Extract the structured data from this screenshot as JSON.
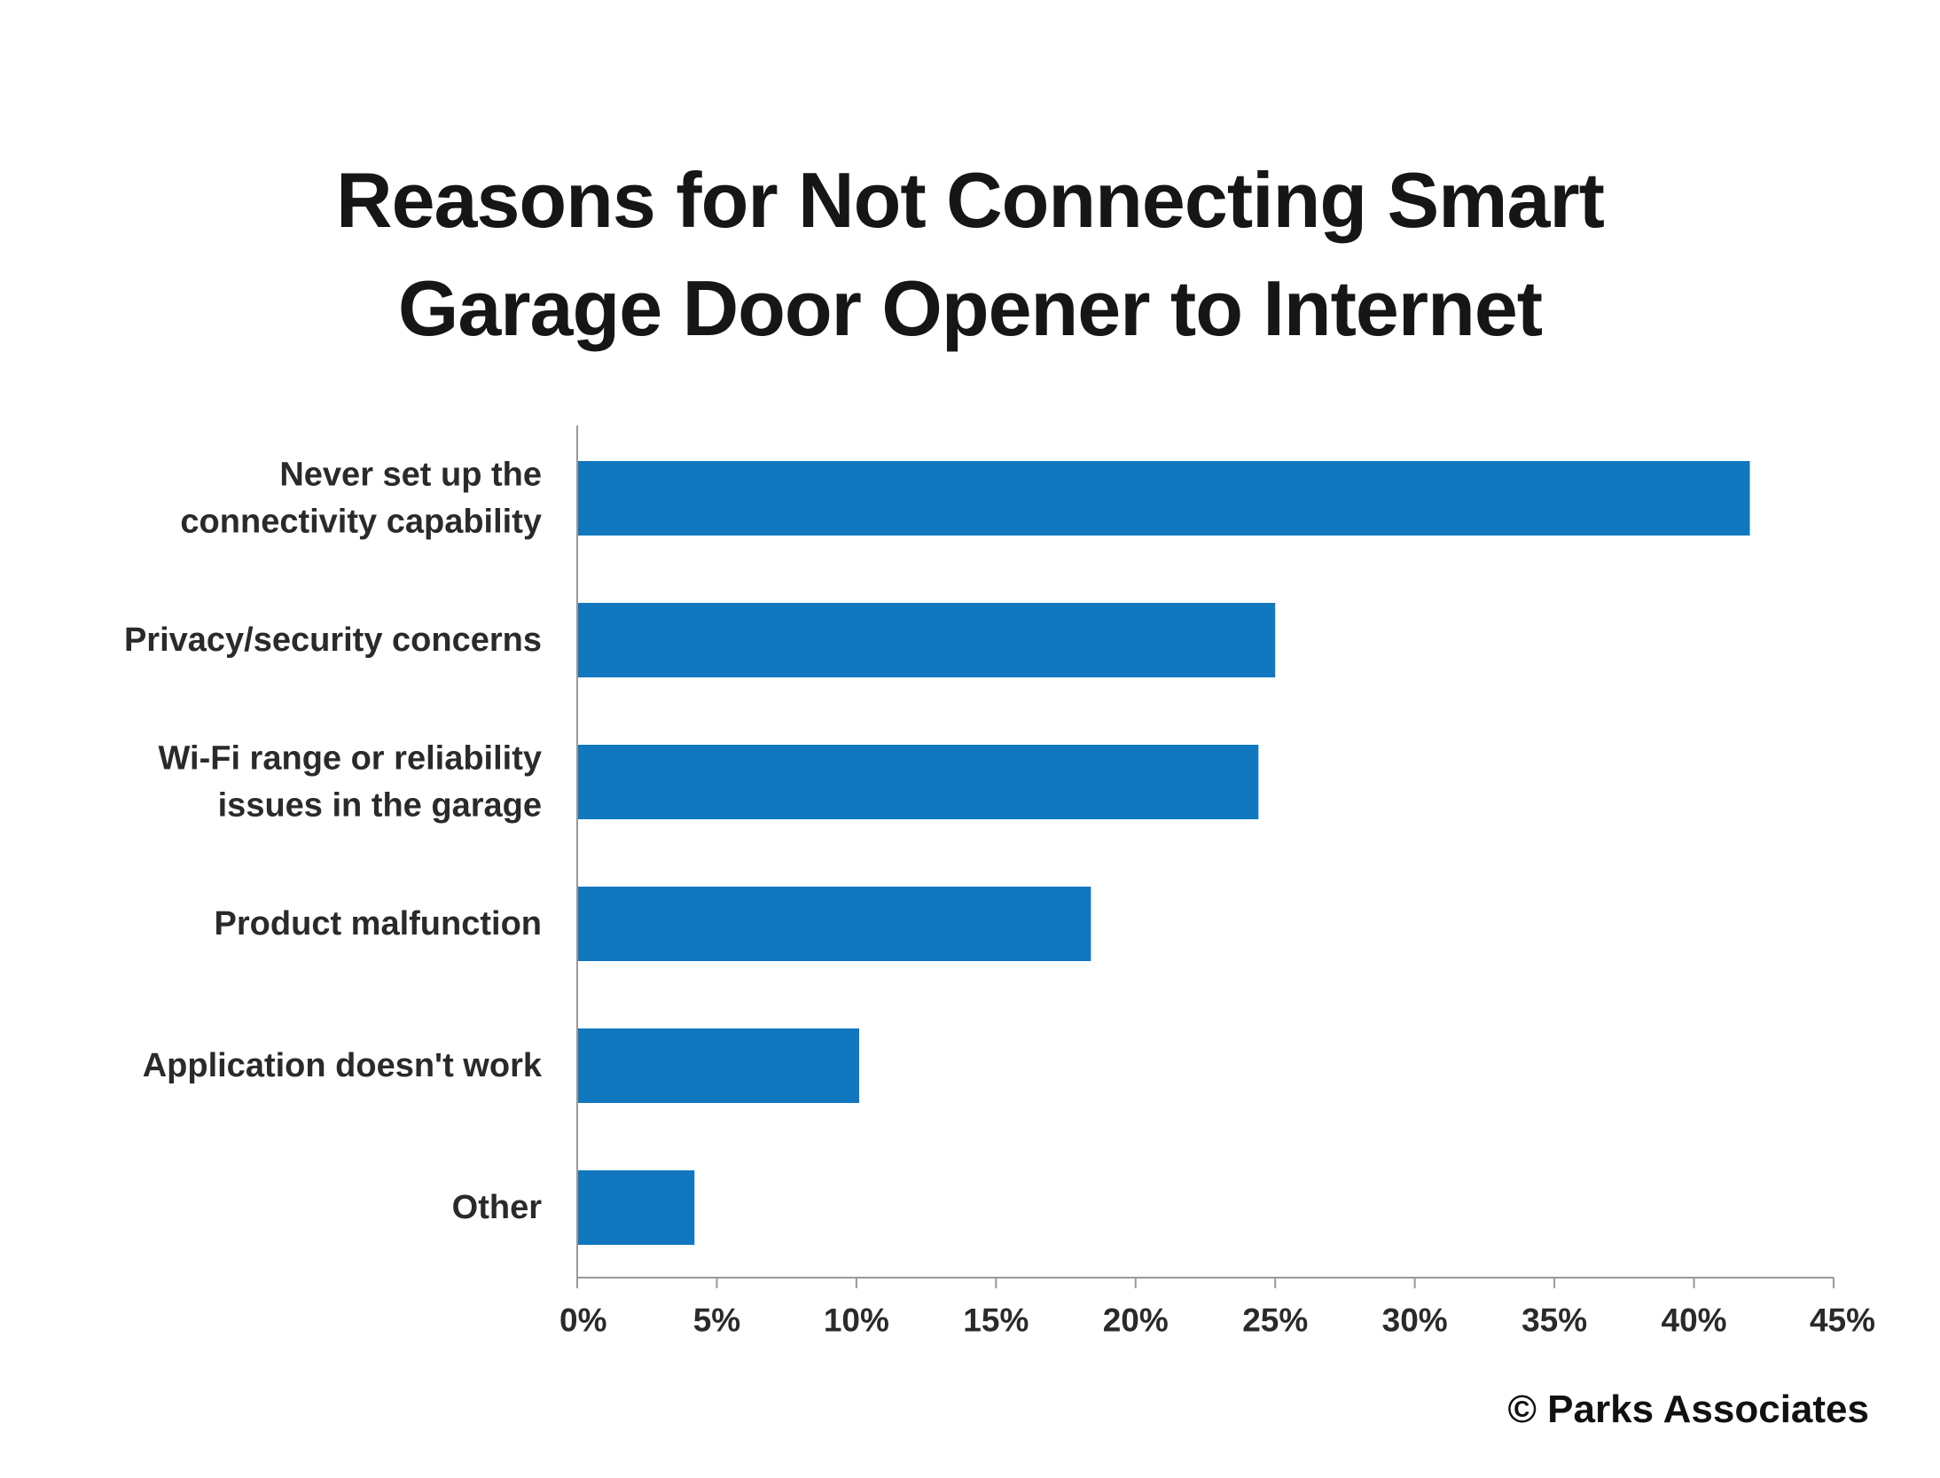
{
  "chart_data": {
    "type": "bar",
    "orientation": "horizontal",
    "title_lines": [
      "Reasons for Not Connecting Smart",
      "Garage Door Opener to Internet"
    ],
    "categories": [
      [
        "Never set up the",
        "connectivity capability"
      ],
      [
        "Privacy/security concerns"
      ],
      [
        "Wi-Fi range or reliability",
        "issues in the garage"
      ],
      [
        "Product malfunction"
      ],
      [
        "Application doesn't work"
      ],
      [
        "Other"
      ]
    ],
    "values": [
      42,
      25,
      24.4,
      18.4,
      10.1,
      4.2
    ],
    "xlim": [
      0,
      45
    ],
    "xticks": [
      0,
      5,
      10,
      15,
      20,
      25,
      30,
      35,
      40,
      45
    ],
    "xtick_labels": [
      "0%",
      "5%",
      "10%",
      "15%",
      "20%",
      "25%",
      "30%",
      "35%",
      "40%",
      "45%"
    ],
    "bar_color": "#1177bf",
    "axis_color": "#999999",
    "grid": false,
    "legend": "none"
  },
  "footer": {
    "copyright": "© Parks Associates"
  }
}
